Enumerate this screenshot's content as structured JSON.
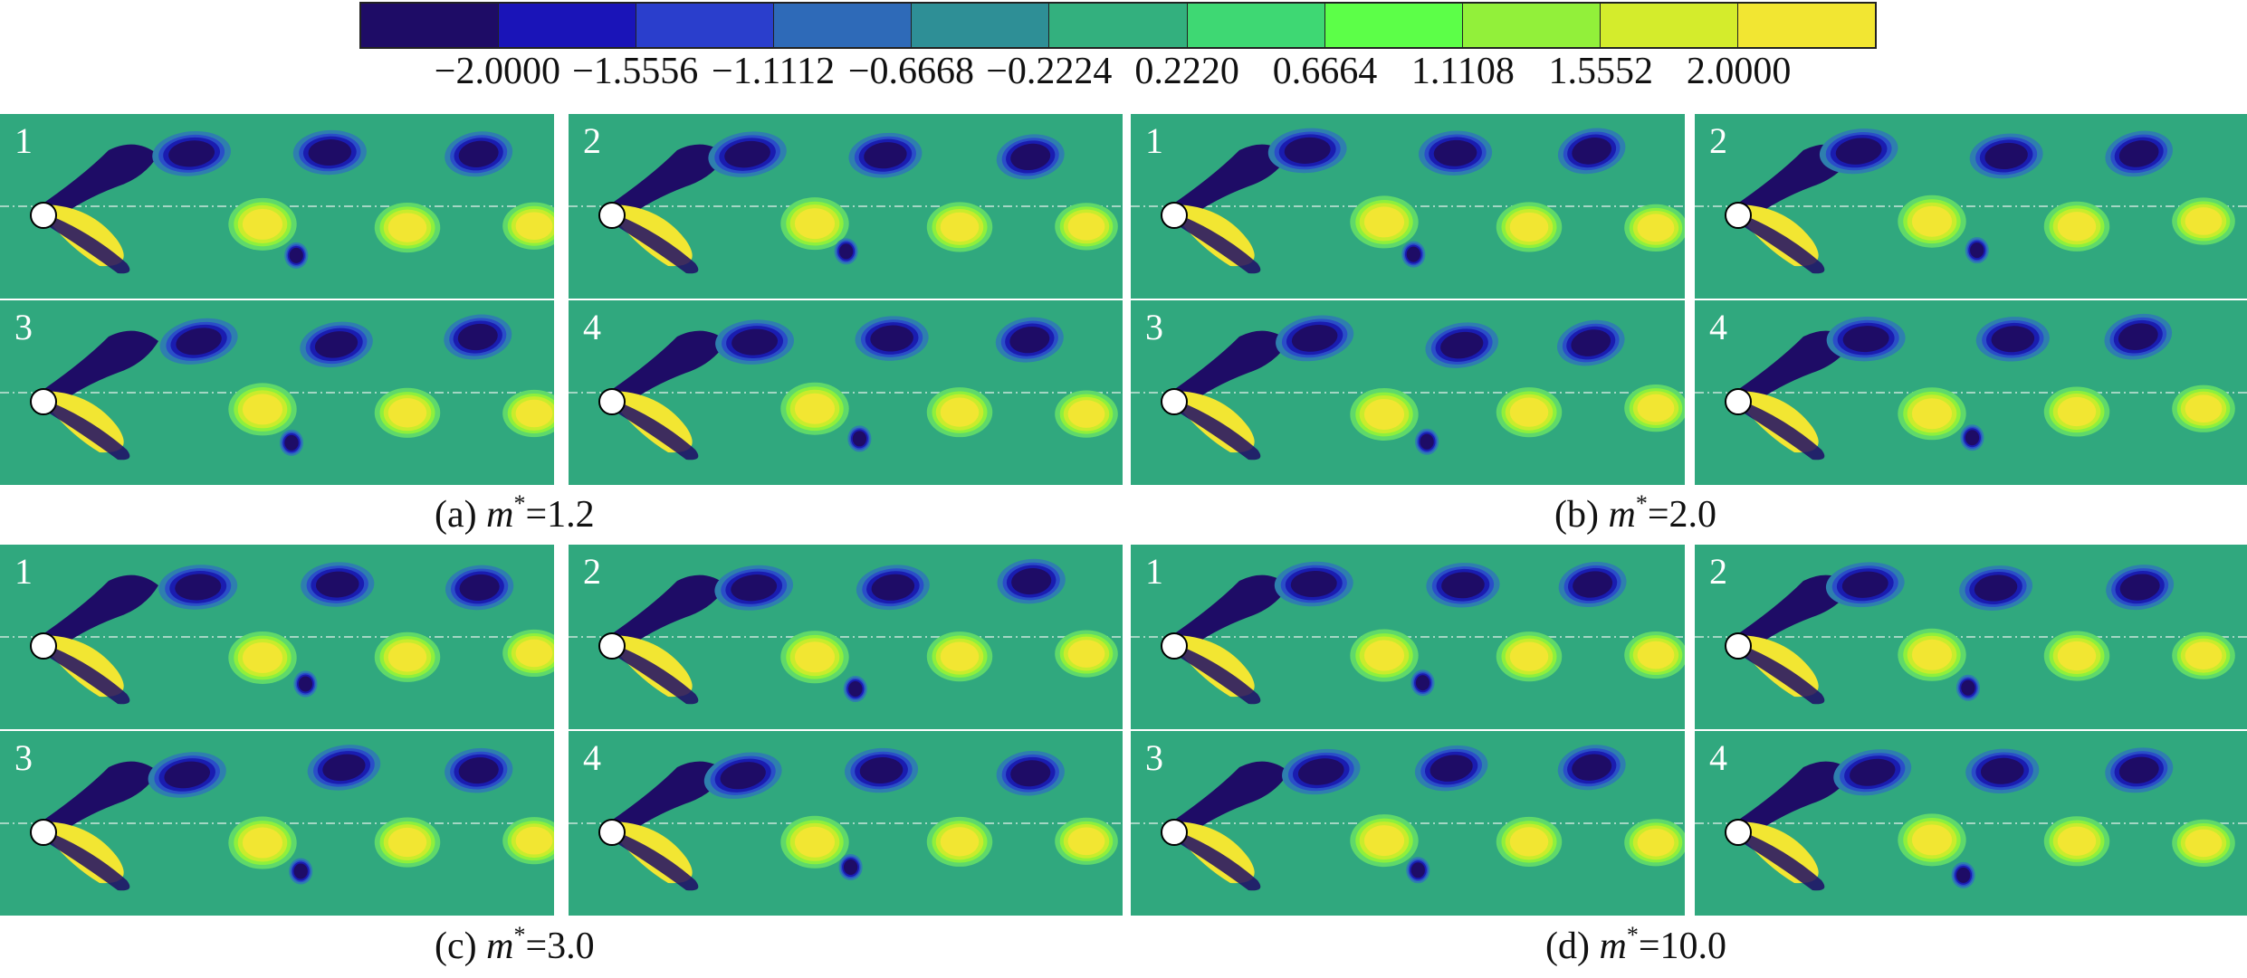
{
  "colorbar": {
    "colors": [
      "#1e0c66",
      "#1a14b8",
      "#2a3ecc",
      "#2e6ab8",
      "#2e8f96",
      "#33b07e",
      "#3ed873",
      "#5cff48",
      "#92f03a",
      "#d4ec2c",
      "#f2e632"
    ],
    "ticks": [
      "−2.0000",
      "−1.5556",
      "−1.1112",
      "−0.6668",
      "−0.2224",
      "0.2220",
      "0.6664",
      "1.1108",
      "1.5552",
      "2.0000"
    ]
  },
  "groups": [
    {
      "label": "(a)",
      "symbol": "m",
      "sup": "*",
      "value": "=1.2",
      "frames": [
        "1",
        "2",
        "3",
        "4"
      ]
    },
    {
      "label": "(b)",
      "symbol": "m",
      "sup": "*",
      "value": "=2.0",
      "frames": [
        "1",
        "2",
        "3",
        "4"
      ]
    },
    {
      "label": "(c)",
      "symbol": "m",
      "sup": "*",
      "value": "=3.0",
      "frames": [
        "1",
        "2",
        "3",
        "4"
      ]
    },
    {
      "label": "(d)",
      "symbol": "m",
      "sup": "*",
      "value": "=10.0",
      "frames": [
        "1",
        "2",
        "3",
        "4"
      ]
    }
  ],
  "colors": {
    "background_field": "#30a87e",
    "negative_vortex": "#1e0c66",
    "positive_vortex": "#f2e632",
    "cylinder": "#ffffff"
  }
}
